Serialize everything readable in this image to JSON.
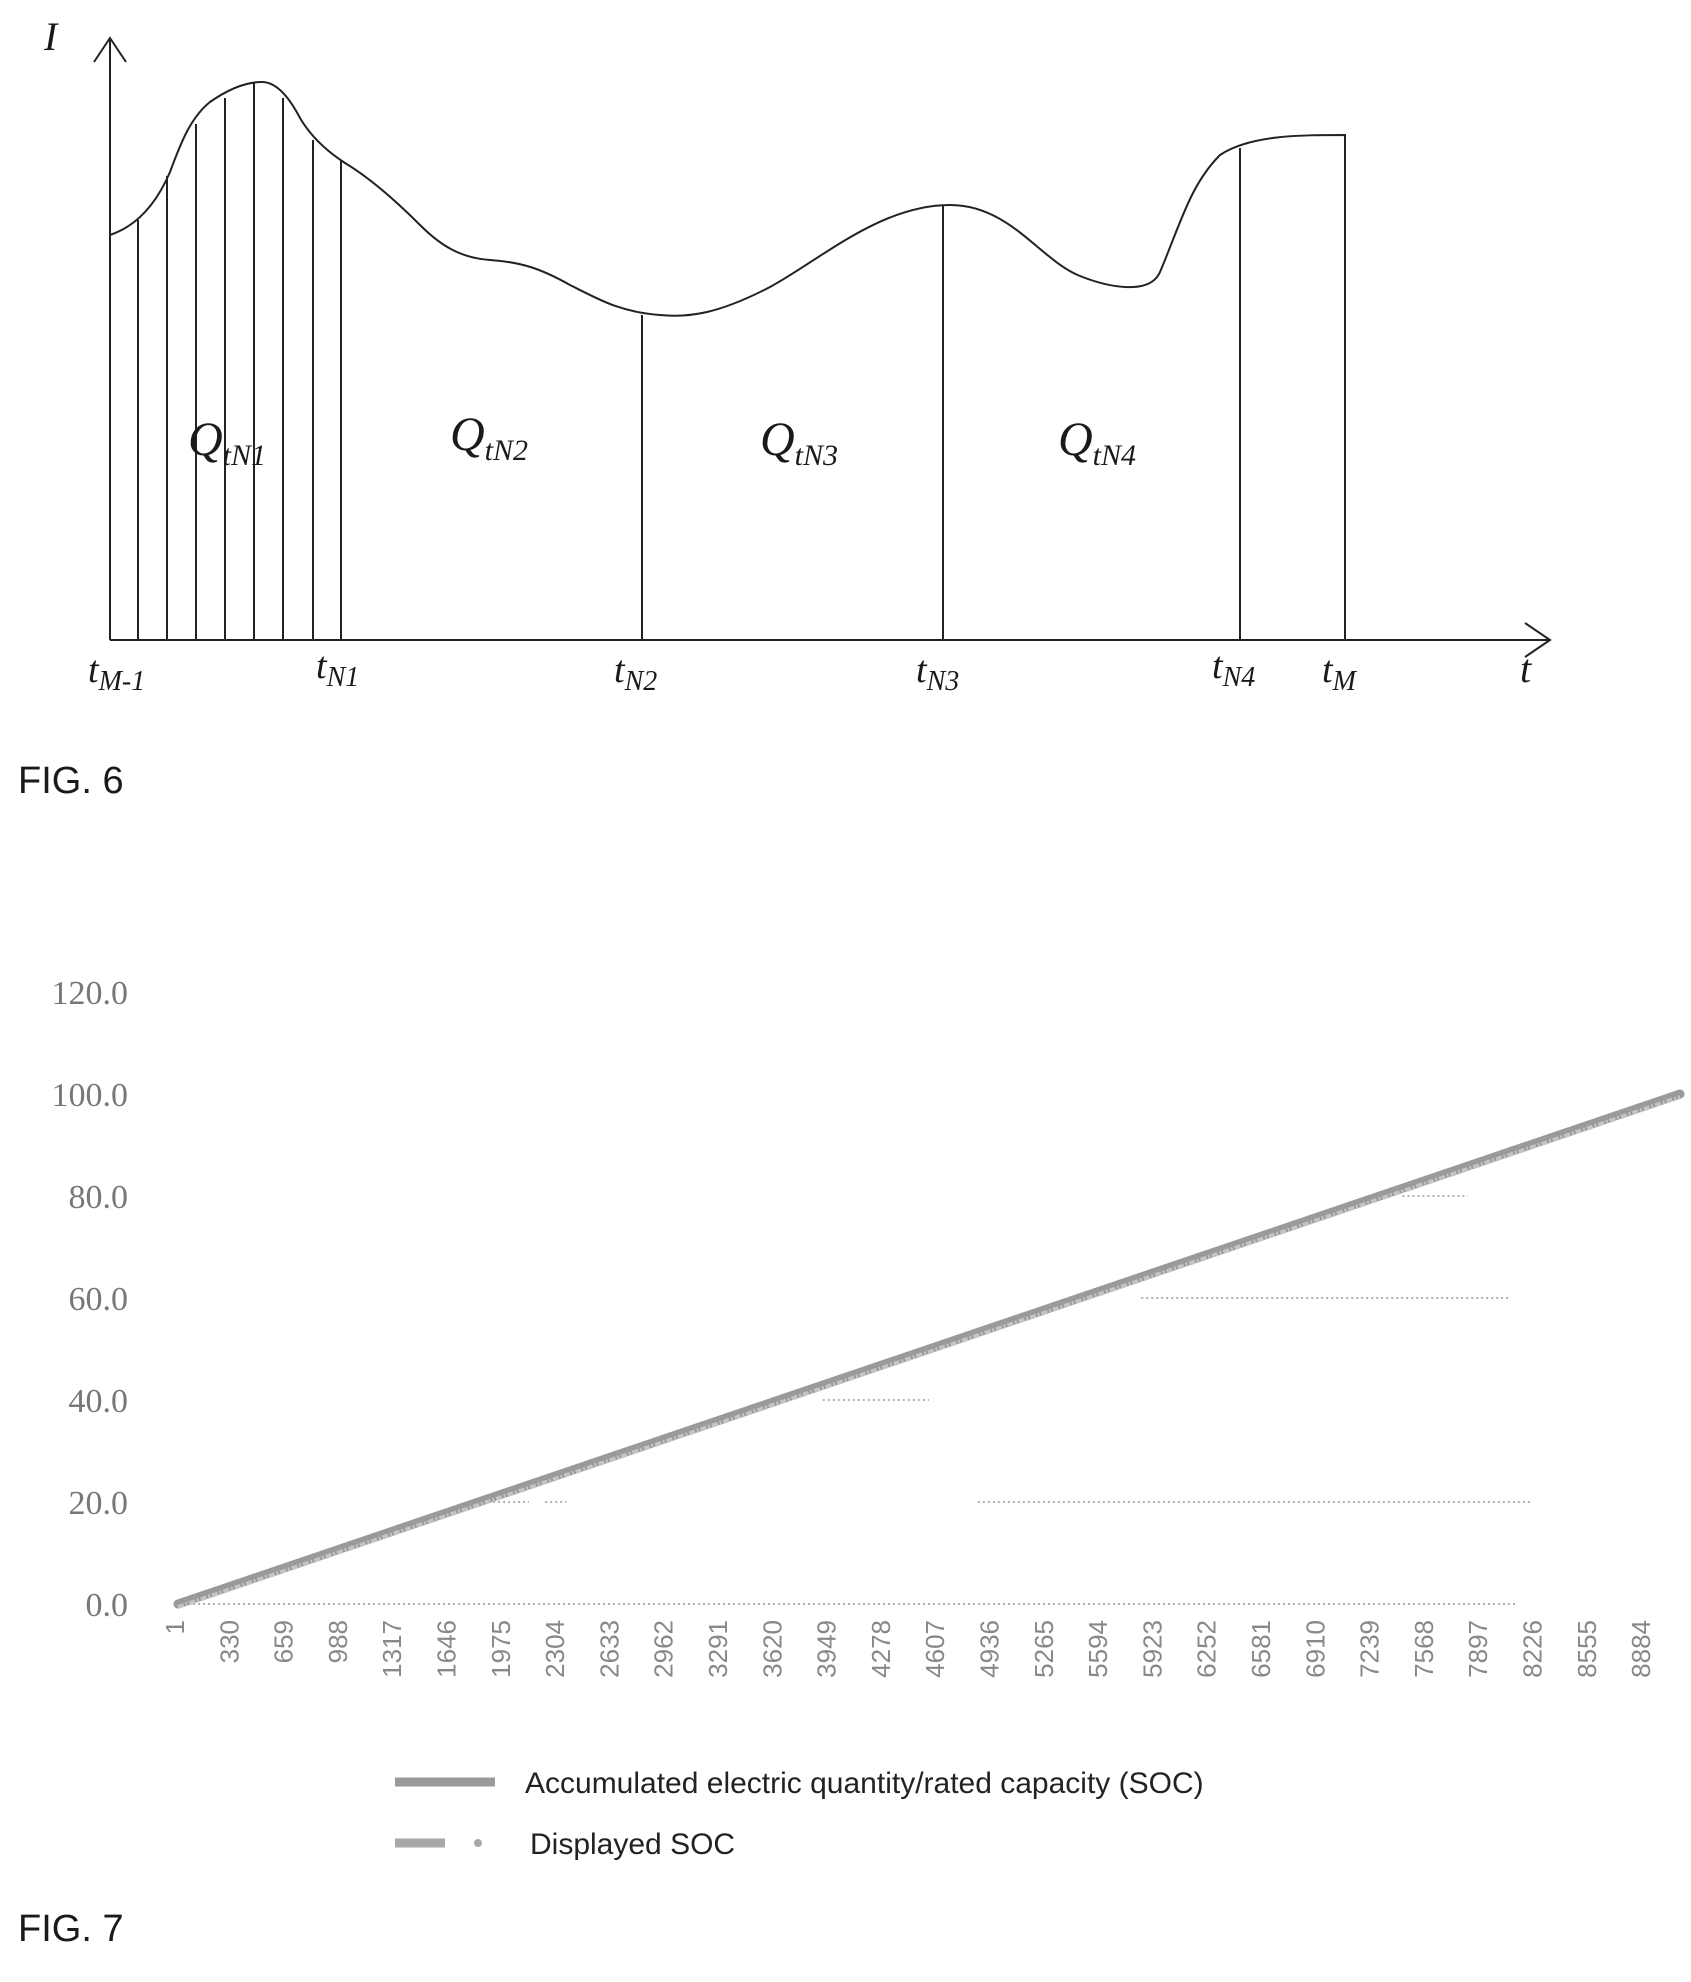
{
  "fig6": {
    "caption": "FIG. 6",
    "y_axis_label": "I",
    "x_axis_label": "t",
    "time_labels": [
      {
        "main": "t",
        "sub": "M-1"
      },
      {
        "main": "t",
        "sub": "N1"
      },
      {
        "main": "t",
        "sub": "N2"
      },
      {
        "main": "t",
        "sub": "N3"
      },
      {
        "main": "t",
        "sub": "N4"
      },
      {
        "main": "t",
        "sub": "M"
      }
    ],
    "region_labels": [
      {
        "main": "Q",
        "sub": "tN1"
      },
      {
        "main": "Q",
        "sub": "tN2"
      },
      {
        "main": "Q",
        "sub": "tN3"
      },
      {
        "main": "Q",
        "sub": "tN4"
      }
    ]
  },
  "fig7": {
    "caption": "FIG. 7",
    "chart_data": {
      "type": "line",
      "title": "",
      "xlabel": "",
      "ylabel": "",
      "ylim": [
        0,
        120
      ],
      "yticks": [
        "0.0",
        "20.0",
        "40.0",
        "60.0",
        "80.0",
        "100.0",
        "120.0"
      ],
      "xticks": [
        "1",
        "330",
        "659",
        "988",
        "1317",
        "1646",
        "1975",
        "2304",
        "2633",
        "2962",
        "3291",
        "3620",
        "3949",
        "4278",
        "4607",
        "4936",
        "5265",
        "5594",
        "5923",
        "6252",
        "6581",
        "6910",
        "7239",
        "7568",
        "7897",
        "8226",
        "8555",
        "8884"
      ],
      "xlim": [
        1,
        9200
      ],
      "grid": false,
      "legend_position": "bottom",
      "series": [
        {
          "name": "Accumulated electric quantity/rated capacity (SOC)",
          "style": "solid",
          "color": "#9a9a9a",
          "x": [
            1,
            9200
          ],
          "y": [
            0,
            100
          ]
        },
        {
          "name": "Displayed SOC",
          "style": "dashed-dotted",
          "color": "#b0b0b0",
          "segments": [
            {
              "x": [
                1,
                8200
              ],
              "y": [
                0,
                0
              ]
            },
            {
              "x": [
                1900,
                2150
              ],
              "y": [
                20,
                20
              ]
            },
            {
              "x": [
                2250,
                2380
              ],
              "y": [
                20,
                20
              ]
            },
            {
              "x": [
                4900,
                8300
              ],
              "y": [
                20,
                20
              ]
            },
            {
              "x": [
                3950,
                4600
              ],
              "y": [
                40,
                40
              ]
            },
            {
              "x": [
                5900,
                8150
              ],
              "y": [
                60,
                60
              ]
            },
            {
              "x": [
                7500,
                7900
              ],
              "y": [
                80,
                80
              ]
            }
          ]
        }
      ]
    }
  }
}
